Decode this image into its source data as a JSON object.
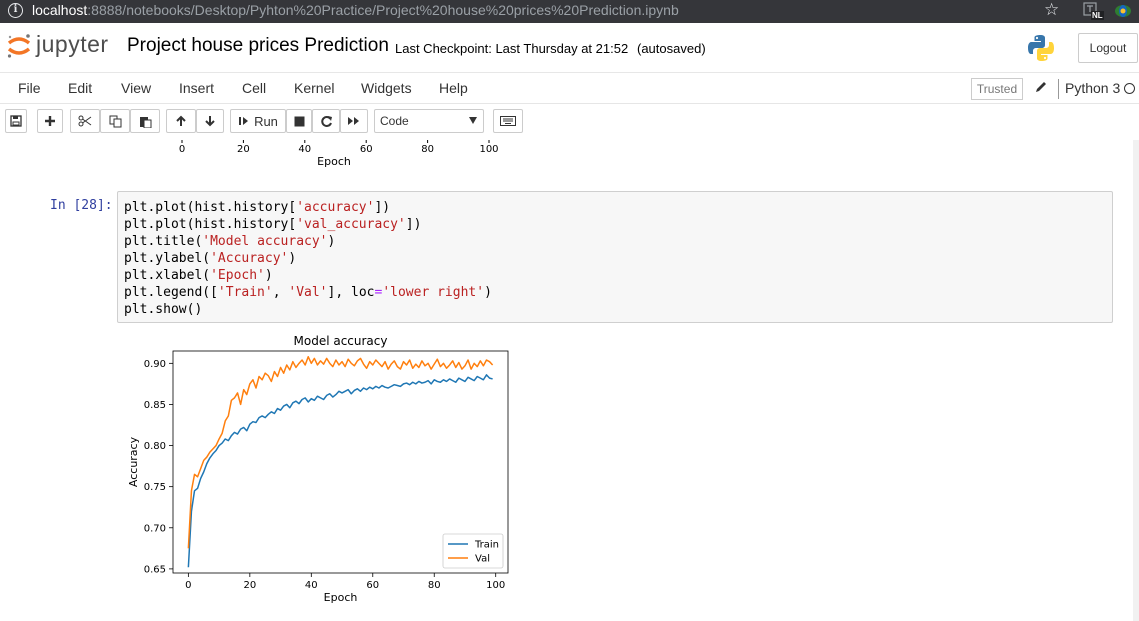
{
  "browser": {
    "url_host": "localhost",
    "url_path": ":8888/notebooks/Desktop/Pyhton%20Practice/Project%20house%20prices%20Prediction.ipynb",
    "ext_badge": "NL"
  },
  "header": {
    "logo_text": "jupyter",
    "notebook_name": "Project house prices Prediction",
    "checkpoint": "Last Checkpoint: Last Thursday at 21:52",
    "autosave": "(autosaved)",
    "logout": "Logout"
  },
  "menu": {
    "items": [
      "File",
      "Edit",
      "View",
      "Insert",
      "Cell",
      "Kernel",
      "Widgets",
      "Help"
    ],
    "trusted": "Trusted",
    "kernel": "Python 3"
  },
  "toolbar": {
    "run_label": "Run",
    "cell_type": "Code"
  },
  "cell": {
    "prompt": "In [28]:",
    "code_lines": [
      "plt.plot(hist.history['accuracy'])",
      "plt.plot(hist.history['val_accuracy'])",
      "plt.title('Model accuracy')",
      "plt.ylabel('Accuracy')",
      "plt.xlabel('Epoch')",
      "plt.legend(['Train', 'Val'], loc='lower right')",
      "plt.show()"
    ]
  },
  "prev_chart_axis": {
    "ticks": [
      "0",
      "20",
      "40",
      "60",
      "80",
      "100"
    ],
    "xlabel": "Epoch"
  },
  "chart_data": {
    "type": "line",
    "title": "Model accuracy",
    "xlabel": "Epoch",
    "ylabel": "Accuracy",
    "xlim": [
      -5,
      104
    ],
    "ylim": [
      0.645,
      0.915
    ],
    "xticks": [
      0,
      20,
      40,
      60,
      80,
      100
    ],
    "yticks": [
      0.65,
      0.7,
      0.75,
      0.8,
      0.85,
      0.9
    ],
    "ytick_labels": [
      "0.65",
      "0.70",
      "0.75",
      "0.80",
      "0.85",
      "0.90"
    ],
    "legend_loc": "lower right",
    "grid": false,
    "colors": {
      "Train": "#1f77b4",
      "Val": "#ff7f0e"
    },
    "series": [
      {
        "name": "Train",
        "x": [
          0,
          1,
          2,
          3,
          4,
          5,
          6,
          7,
          8,
          9,
          10,
          11,
          12,
          13,
          14,
          15,
          16,
          17,
          18,
          19,
          20,
          21,
          22,
          23,
          24,
          25,
          26,
          27,
          28,
          29,
          30,
          31,
          32,
          33,
          34,
          35,
          36,
          37,
          38,
          39,
          40,
          41,
          42,
          43,
          44,
          45,
          46,
          47,
          48,
          49,
          50,
          51,
          52,
          53,
          54,
          55,
          56,
          57,
          58,
          59,
          60,
          61,
          62,
          63,
          64,
          65,
          66,
          67,
          68,
          69,
          70,
          71,
          72,
          73,
          74,
          75,
          76,
          77,
          78,
          79,
          80,
          81,
          82,
          83,
          84,
          85,
          86,
          87,
          88,
          89,
          90,
          91,
          92,
          93,
          94,
          95,
          96,
          97,
          98,
          99
        ],
        "values": [
          0.652,
          0.72,
          0.745,
          0.748,
          0.76,
          0.768,
          0.778,
          0.785,
          0.79,
          0.794,
          0.8,
          0.803,
          0.808,
          0.806,
          0.812,
          0.816,
          0.814,
          0.82,
          0.822,
          0.818,
          0.826,
          0.829,
          0.828,
          0.834,
          0.836,
          0.834,
          0.838,
          0.841,
          0.839,
          0.845,
          0.843,
          0.848,
          0.85,
          0.846,
          0.852,
          0.854,
          0.851,
          0.856,
          0.858,
          0.853,
          0.857,
          0.855,
          0.86,
          0.858,
          0.856,
          0.861,
          0.863,
          0.859,
          0.862,
          0.866,
          0.864,
          0.866,
          0.868,
          0.863,
          0.867,
          0.869,
          0.866,
          0.87,
          0.868,
          0.871,
          0.869,
          0.872,
          0.87,
          0.873,
          0.871,
          0.87,
          0.872,
          0.874,
          0.873,
          0.872,
          0.875,
          0.876,
          0.874,
          0.877,
          0.875,
          0.878,
          0.876,
          0.877,
          0.879,
          0.875,
          0.88,
          0.878,
          0.877,
          0.88,
          0.878,
          0.881,
          0.879,
          0.877,
          0.882,
          0.88,
          0.878,
          0.883,
          0.881,
          0.879,
          0.884,
          0.882,
          0.88,
          0.886,
          0.882,
          0.881
        ]
      },
      {
        "name": "Val",
        "x": [
          0,
          1,
          2,
          3,
          4,
          5,
          6,
          7,
          8,
          9,
          10,
          11,
          12,
          13,
          14,
          15,
          16,
          17,
          18,
          19,
          20,
          21,
          22,
          23,
          24,
          25,
          26,
          27,
          28,
          29,
          30,
          31,
          32,
          33,
          34,
          35,
          36,
          37,
          38,
          39,
          40,
          41,
          42,
          43,
          44,
          45,
          46,
          47,
          48,
          49,
          50,
          51,
          52,
          53,
          54,
          55,
          56,
          57,
          58,
          59,
          60,
          61,
          62,
          63,
          64,
          65,
          66,
          67,
          68,
          69,
          70,
          71,
          72,
          73,
          74,
          75,
          76,
          77,
          78,
          79,
          80,
          81,
          82,
          83,
          84,
          85,
          86,
          87,
          88,
          89,
          90,
          91,
          92,
          93,
          94,
          95,
          96,
          97,
          98,
          99
        ],
        "values": [
          0.675,
          0.745,
          0.765,
          0.762,
          0.772,
          0.782,
          0.786,
          0.792,
          0.796,
          0.8,
          0.808,
          0.815,
          0.83,
          0.836,
          0.855,
          0.858,
          0.864,
          0.85,
          0.868,
          0.862,
          0.875,
          0.88,
          0.87,
          0.884,
          0.88,
          0.888,
          0.885,
          0.878,
          0.89,
          0.884,
          0.895,
          0.888,
          0.898,
          0.892,
          0.902,
          0.895,
          0.9,
          0.904,
          0.898,
          0.908,
          0.9,
          0.906,
          0.898,
          0.903,
          0.899,
          0.906,
          0.9,
          0.896,
          0.904,
          0.898,
          0.902,
          0.896,
          0.905,
          0.9,
          0.897,
          0.903,
          0.906,
          0.899,
          0.894,
          0.902,
          0.898,
          0.904,
          0.9,
          0.896,
          0.902,
          0.893,
          0.899,
          0.903,
          0.896,
          0.893,
          0.902,
          0.898,
          0.904,
          0.894,
          0.899,
          0.895,
          0.903,
          0.897,
          0.9,
          0.893,
          0.899,
          0.905,
          0.896,
          0.9,
          0.894,
          0.898,
          0.903,
          0.895,
          0.901,
          0.893,
          0.897,
          0.904,
          0.893,
          0.9,
          0.896,
          0.903,
          0.897,
          0.904,
          0.902,
          0.898
        ]
      }
    ]
  }
}
